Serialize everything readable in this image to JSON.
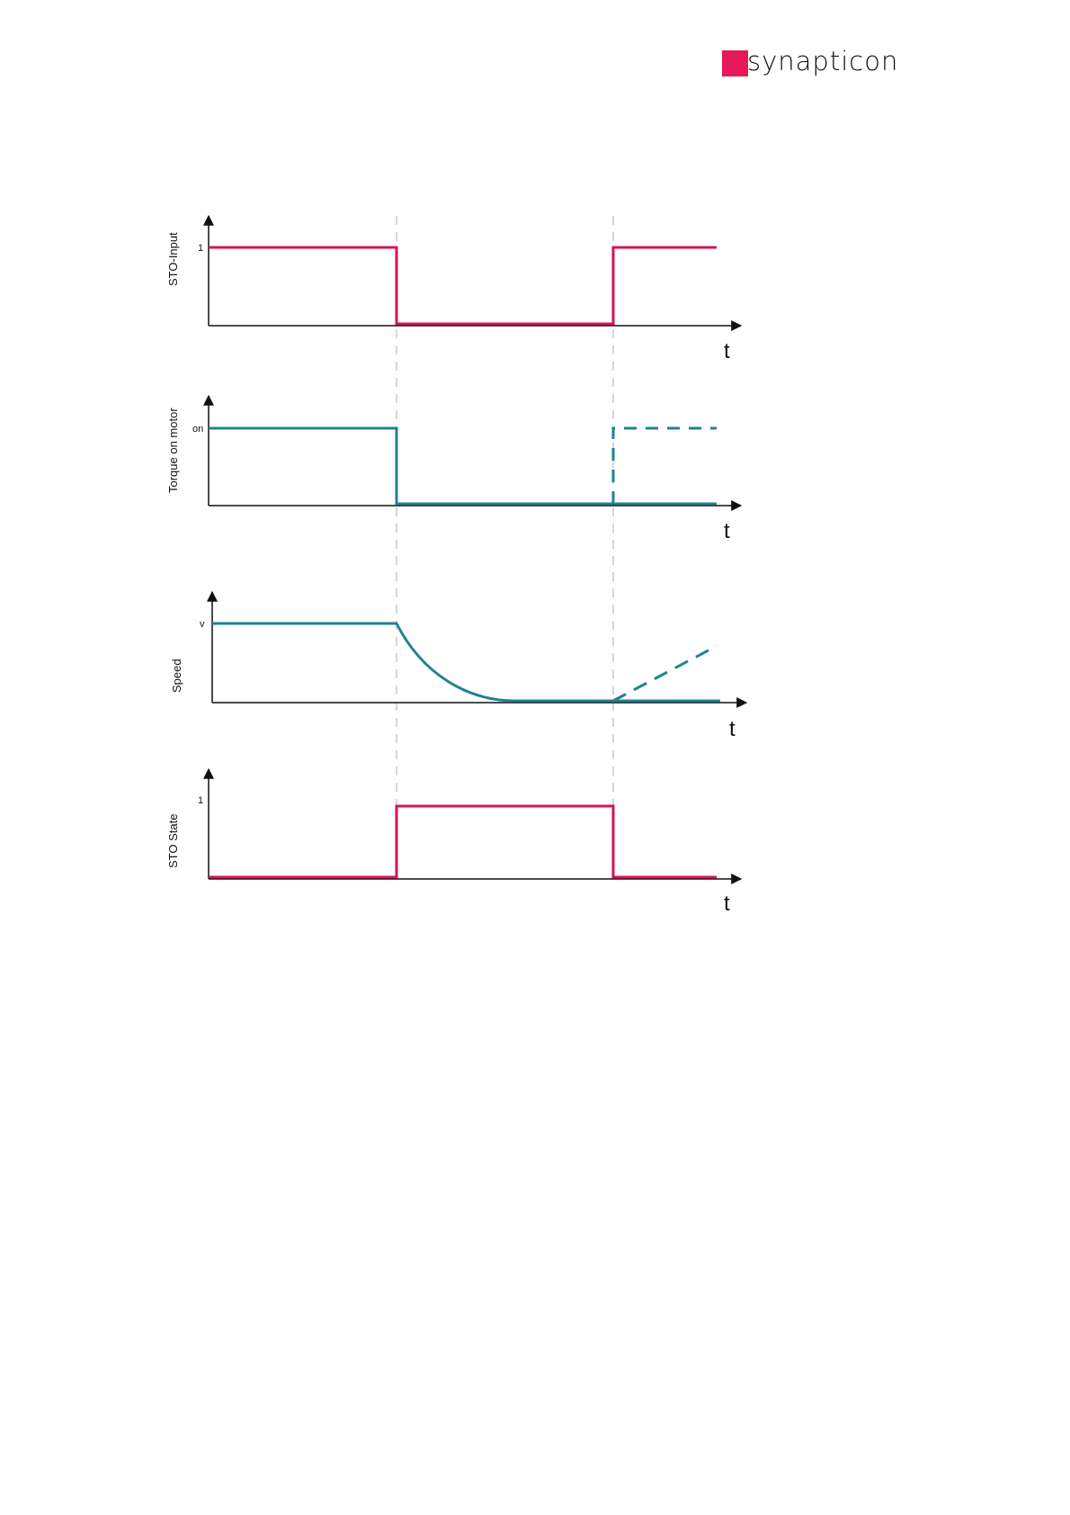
{
  "header": {
    "logo_text": "synapticon"
  },
  "colors": {
    "magenta": "#d4145a",
    "teal": "#1f8391",
    "axis": "#111111",
    "guide": "#c8c8c8"
  },
  "time_axis_label": "t",
  "panels": [
    {
      "id": "sto-input",
      "y_label": "STO-Input",
      "y_tick": "1",
      "t_label": "t",
      "color": "magenta",
      "waveform": "high-low-high"
    },
    {
      "id": "torque",
      "y_label": "Torque on motor",
      "y_tick": "on",
      "t_label": "t",
      "color": "teal",
      "waveform": "high-low, optional dashed high after restart"
    },
    {
      "id": "speed",
      "y_label": "Speed",
      "y_tick": "v",
      "t_label": "t",
      "color": "teal",
      "waveform": "constant, decay to zero, optional dashed ramp after restart"
    },
    {
      "id": "sto-state",
      "y_label": "STO State",
      "y_tick": "1",
      "t_label": "t",
      "color": "magenta",
      "waveform": "low-high-low"
    }
  ]
}
